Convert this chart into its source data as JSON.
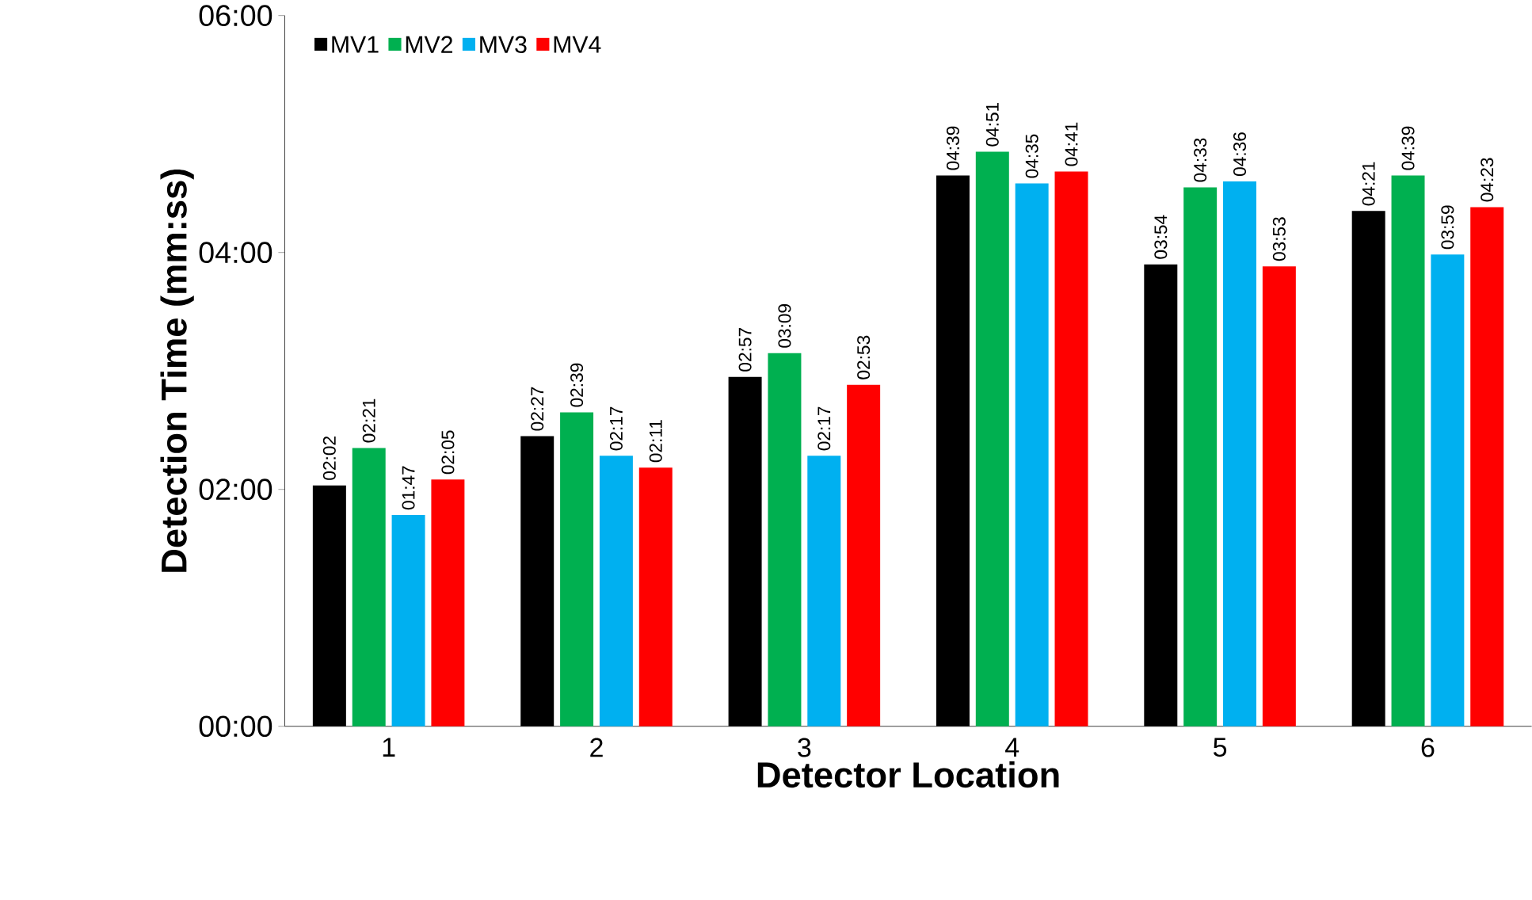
{
  "chart_data": {
    "type": "bar",
    "xlabel": "Detector Location",
    "ylabel": "Detection Time (mm:ss)",
    "categories": [
      "1",
      "2",
      "3",
      "4",
      "5",
      "6"
    ],
    "series": [
      {
        "name": "MV1",
        "color": "#000000",
        "values": [
          122,
          147,
          177,
          279,
          234,
          261
        ],
        "value_labels": [
          "02:02",
          "02:27",
          "02:57",
          "04:39",
          "03:54",
          "04:21"
        ]
      },
      {
        "name": "MV2",
        "color": "#00b050",
        "values": [
          141,
          159,
          189,
          291,
          273,
          279
        ],
        "value_labels": [
          "02:21",
          "02:39",
          "03:09",
          "04:51",
          "04:33",
          "04:39"
        ]
      },
      {
        "name": "MV3",
        "color": "#00b0f0",
        "values": [
          107,
          137,
          137,
          275,
          276,
          239
        ],
        "value_labels": [
          "01:47",
          "02:17",
          "02:17",
          "04:35",
          "04:36",
          "03:59"
        ]
      },
      {
        "name": "MV4",
        "color": "#ff0000",
        "values": [
          125,
          131,
          173,
          281,
          233,
          263
        ],
        "value_labels": [
          "02:05",
          "02:11",
          "02:53",
          "04:41",
          "03:53",
          "04:23"
        ]
      }
    ],
    "ylim": [
      0,
      360
    ],
    "yticks": [
      {
        "value": 0,
        "label": "00:00"
      },
      {
        "value": 120,
        "label": "02:00"
      },
      {
        "value": 240,
        "label": "04:00"
      },
      {
        "value": 360,
        "label": "06:00"
      }
    ],
    "grid": false,
    "legend": "top left"
  }
}
